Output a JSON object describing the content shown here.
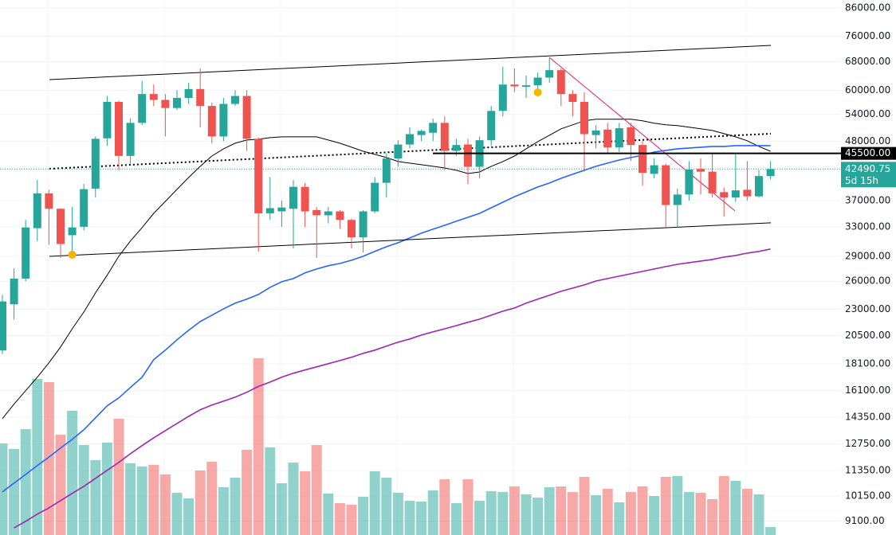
{
  "chart_data": {
    "type": "candlestick",
    "log_scale": true,
    "grid": true,
    "ylim": [
      8560,
      89050
    ],
    "yticks": [
      {
        "value": 86000,
        "label": "86000.00"
      },
      {
        "value": 76000,
        "label": "76000.00"
      },
      {
        "value": 68000,
        "label": "68000.00"
      },
      {
        "value": 60000,
        "label": "60000.00"
      },
      {
        "value": 54000,
        "label": "54000.00"
      },
      {
        "value": 48000,
        "label": "48000.00"
      },
      {
        "value": 37000,
        "label": "37000.00"
      },
      {
        "value": 33000,
        "label": "33000.00"
      },
      {
        "value": 29000,
        "label": "29000.00"
      },
      {
        "value": 26000,
        "label": "26000.00"
      },
      {
        "value": 23000,
        "label": "23000.00"
      },
      {
        "value": 20500,
        "label": "20500.00"
      },
      {
        "value": 18100,
        "label": "18100.00"
      },
      {
        "value": 16100,
        "label": "16100.00"
      },
      {
        "value": 14350,
        "label": "14350.00"
      },
      {
        "value": 12750,
        "label": "12750.00"
      },
      {
        "value": 11350,
        "label": "11350.00"
      },
      {
        "value": 10150,
        "label": "10150.00"
      },
      {
        "value": 9100,
        "label": "9100.00"
      }
    ],
    "categories": [
      null,
      null,
      null,
      null,
      null,
      null,
      null,
      null,
      null,
      null,
      null,
      null,
      null,
      null,
      null,
      null,
      null,
      null,
      null,
      null,
      null,
      null,
      null,
      null,
      null,
      null,
      null,
      null,
      null,
      null,
      null,
      null,
      null,
      null,
      null,
      null,
      null,
      null,
      null,
      null,
      null,
      null,
      null,
      null,
      null,
      null,
      null,
      null,
      null,
      null,
      null,
      null,
      null,
      null,
      null,
      null,
      null,
      null,
      null,
      null,
      null,
      null,
      null,
      null,
      null,
      null,
      null
    ],
    "ohlc": {
      "up_color": "#26a69a",
      "down_color": "#ef5350",
      "open": [
        19200,
        23500,
        26300,
        32800,
        38200,
        35700,
        31800,
        33000,
        39000,
        48600,
        57000,
        45000,
        52000,
        59000,
        57500,
        55500,
        58000,
        60300,
        56000,
        49000,
        56500,
        58500,
        48500,
        35000,
        35300,
        35700,
        39300,
        35500,
        34700,
        35300,
        34000,
        31500,
        35300,
        40000,
        44500,
        47300,
        49300,
        49800,
        52000,
        46000,
        47300,
        42900,
        48200,
        54800,
        61500,
        60900,
        61300,
        63400,
        65500,
        59000,
        57000,
        49300,
        50500,
        46700,
        51000,
        47200,
        41600,
        43200,
        36300,
        38000,
        42500,
        42000,
        38400,
        37500,
        38800,
        37700,
        41200
      ],
      "high": [
        24500,
        27500,
        34000,
        40500,
        38800,
        35800,
        36000,
        39800,
        49000,
        58500,
        57300,
        53000,
        62500,
        61500,
        59000,
        60000,
        62000,
        66000,
        56800,
        58000,
        60000,
        60000,
        48800,
        41000,
        37000,
        40500,
        40000,
        36000,
        36000,
        35500,
        34200,
        35500,
        41000,
        45500,
        48200,
        51000,
        50500,
        53000,
        53500,
        48500,
        48500,
        49000,
        56000,
        66500,
        66000,
        64000,
        64800,
        69000,
        66000,
        60000,
        59500,
        51500,
        52000,
        52000,
        52000,
        48000,
        44500,
        43500,
        39000,
        44000,
        44500,
        45500,
        39200,
        45300,
        44000,
        42300,
        44000
      ],
      "low": [
        18900,
        22000,
        26000,
        31000,
        30500,
        28800,
        29000,
        32500,
        37500,
        47000,
        42300,
        43500,
        51500,
        56000,
        49000,
        55000,
        56500,
        51000,
        47500,
        48000,
        56000,
        46000,
        29600,
        34000,
        33000,
        30000,
        33000,
        28800,
        33500,
        32700,
        30000,
        29500,
        35000,
        37500,
        42900,
        46500,
        48000,
        48000,
        42300,
        45000,
        39800,
        40800,
        47000,
        53500,
        59500,
        58000,
        58500,
        62000,
        56000,
        53500,
        42000,
        46500,
        45500,
        45800,
        44000,
        39500,
        40800,
        33000,
        32900,
        37000,
        38000,
        37500,
        34500,
        36800,
        37000,
        37500,
        40600
      ],
      "close": [
        23800,
        26300,
        32900,
        38200,
        35700,
        30600,
        32900,
        38900,
        48500,
        57000,
        45000,
        52000,
        59000,
        57500,
        55500,
        58000,
        60300,
        56000,
        49000,
        56500,
        58500,
        48500,
        35000,
        35800,
        35900,
        39300,
        35300,
        34700,
        35300,
        34000,
        31500,
        35300,
        40000,
        44500,
        47300,
        49500,
        50200,
        52000,
        46000,
        47200,
        42900,
        48200,
        54800,
        61500,
        61000,
        61300,
        63400,
        65500,
        59000,
        57000,
        49500,
        50300,
        46700,
        50800,
        47200,
        41800,
        43200,
        36300,
        38000,
        42400,
        42000,
        38200,
        37500,
        38700,
        37700,
        41200,
        42490.75
      ]
    },
    "moving_averages": [
      {
        "color": "#000000",
        "values": [
          14250,
          15180,
          16100,
          17080,
          18190,
          19500,
          21110,
          22720,
          24700,
          26690,
          29000,
          31010,
          32880,
          34990,
          36870,
          38860,
          40930,
          43000,
          44970,
          46420,
          47570,
          48240,
          48410,
          48740,
          48910,
          48910,
          48910,
          48910,
          48240,
          47570,
          46750,
          45930,
          45310,
          44670,
          43900,
          43600,
          43300,
          43000,
          42690,
          42250,
          41660,
          41950,
          43000,
          43900,
          44970,
          46420,
          47910,
          49250,
          50660,
          51560,
          52480,
          52850,
          52850,
          52850,
          52850,
          52480,
          51920,
          51560,
          51380,
          51020,
          50660,
          50300,
          49600,
          48910,
          48080,
          46910,
          45930
        ]
      },
      {
        "color": "#2962ff",
        "values": [
          10340,
          10740,
          11160,
          11600,
          12040,
          12530,
          13010,
          13570,
          14300,
          15070,
          15600,
          16330,
          17080,
          18440,
          19230,
          20120,
          20970,
          21790,
          22410,
          23040,
          23620,
          24040,
          24530,
          25310,
          25940,
          26300,
          26960,
          27430,
          27820,
          28100,
          28500,
          29000,
          29620,
          30240,
          30770,
          31420,
          32080,
          32650,
          33210,
          33810,
          34390,
          34990,
          35860,
          36740,
          37640,
          38450,
          39270,
          39960,
          40790,
          41520,
          42250,
          43000,
          43600,
          44200,
          44670,
          45130,
          45770,
          46100,
          46420,
          46590,
          46750,
          46910,
          46910,
          47080,
          47080,
          47080,
          47080
        ]
      },
      {
        "color": "#9c27b0",
        "values": [
          null,
          8830,
          9090,
          9380,
          9640,
          9950,
          10270,
          10590,
          10970,
          11360,
          11760,
          12220,
          12660,
          13100,
          13520,
          13950,
          14390,
          14810,
          15120,
          15380,
          15650,
          15990,
          16400,
          16720,
          17080,
          17380,
          17630,
          17870,
          18120,
          18370,
          18640,
          18960,
          19230,
          19570,
          19910,
          20190,
          20540,
          20830,
          21110,
          21410,
          21720,
          22020,
          22410,
          22800,
          23120,
          23620,
          24040,
          24450,
          24880,
          25230,
          25580,
          26020,
          26300,
          26580,
          26860,
          27140,
          27430,
          27720,
          28000,
          28200,
          28400,
          28600,
          28900,
          29100,
          29410,
          29620,
          29930
        ]
      }
    ],
    "volume": {
      "ylim": [
        0,
        300
      ],
      "values": [
        115,
        108,
        133,
        196,
        192,
        126,
        156,
        113,
        94,
        116,
        146,
        90,
        86,
        88,
        76,
        53,
        46,
        81,
        92,
        60,
        72,
        107,
        222,
        110,
        65,
        91,
        80,
        113,
        52,
        40,
        38,
        48,
        80,
        72,
        53,
        43,
        42,
        56,
        70,
        40,
        70,
        43,
        55,
        54,
        61,
        51,
        47,
        60,
        61,
        54,
        73,
        50,
        58,
        41,
        54,
        61,
        49,
        73,
        74,
        54,
        53,
        45,
        74,
        68,
        58,
        51,
        10
      ]
    },
    "trendlines": [
      {
        "values": [
          62850,
          73000
        ],
        "color": "#000000",
        "style": "solid"
      },
      {
        "values": [
          28990,
          33570
        ],
        "color": "#000000",
        "style": "solid"
      },
      {
        "values": [
          42540,
          49600
        ],
        "color": "#000000",
        "style": "dotted"
      },
      {
        "values": [
          69290,
          35370
        ],
        "color": "#e91e63",
        "style": "solid"
      }
    ],
    "markers": [
      {
        "value": 29200,
        "color": "#f7b500"
      },
      {
        "value": 59440,
        "color": "#f7b500"
      }
    ],
    "price_line": {
      "value": 45500,
      "label": "45500.00",
      "color": "#000000"
    },
    "last_price": {
      "value": 42490.75,
      "label": "42490.75",
      "countdown": "5d 15h",
      "color": "#26a69a"
    }
  }
}
